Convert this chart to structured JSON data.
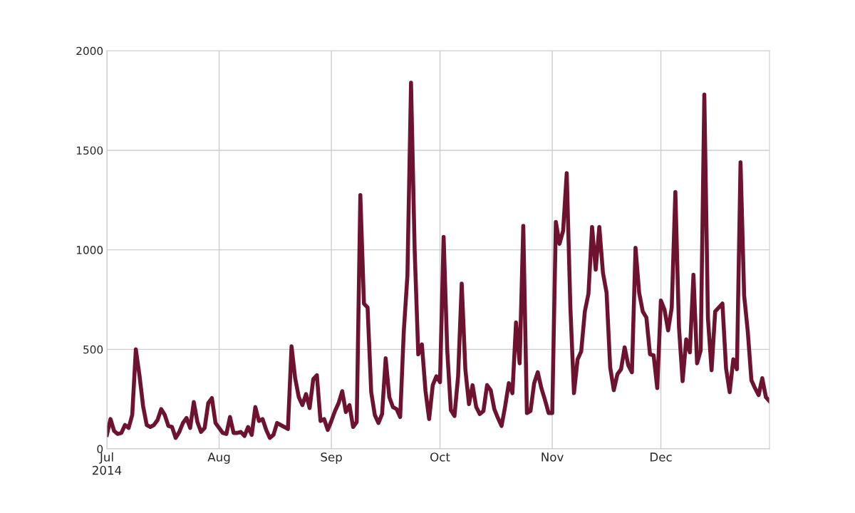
{
  "chart_data": {
    "type": "line",
    "xlim": [
      "2014-07-01",
      "2014-12-31"
    ],
    "ylim": [
      0,
      2000
    ],
    "xticks": [
      {
        "value": "2014-07-01",
        "label": "Jul\n2014"
      },
      {
        "value": "2014-08-01",
        "label": "Aug"
      },
      {
        "value": "2014-09-01",
        "label": "Sep"
      },
      {
        "value": "2014-10-01",
        "label": "Oct"
      },
      {
        "value": "2014-11-01",
        "label": "Nov"
      },
      {
        "value": "2014-12-01",
        "label": "Dec"
      }
    ],
    "yticks": [
      0,
      500,
      1000,
      1500,
      2000
    ],
    "grid": true,
    "marker": "none",
    "line_style": "solid",
    "x": [
      "2014-07-01",
      "2014-07-02",
      "2014-07-03",
      "2014-07-04",
      "2014-07-05",
      "2014-07-06",
      "2014-07-07",
      "2014-07-08",
      "2014-07-09",
      "2014-07-10",
      "2014-07-11",
      "2014-07-12",
      "2014-07-13",
      "2014-07-14",
      "2014-07-15",
      "2014-07-16",
      "2014-07-17",
      "2014-07-18",
      "2014-07-19",
      "2014-07-20",
      "2014-07-21",
      "2014-07-22",
      "2014-07-23",
      "2014-07-24",
      "2014-07-25",
      "2014-07-26",
      "2014-07-27",
      "2014-07-28",
      "2014-07-29",
      "2014-07-30",
      "2014-07-31",
      "2014-08-01",
      "2014-08-02",
      "2014-08-03",
      "2014-08-04",
      "2014-08-05",
      "2014-08-06",
      "2014-08-07",
      "2014-08-08",
      "2014-08-09",
      "2014-08-10",
      "2014-08-11",
      "2014-08-12",
      "2014-08-13",
      "2014-08-14",
      "2014-08-15",
      "2014-08-16",
      "2014-08-17",
      "2014-08-18",
      "2014-08-19",
      "2014-08-20",
      "2014-08-21",
      "2014-08-22",
      "2014-08-23",
      "2014-08-24",
      "2014-08-25",
      "2014-08-26",
      "2014-08-27",
      "2014-08-28",
      "2014-08-29",
      "2014-08-30",
      "2014-08-31",
      "2014-09-01",
      "2014-09-02",
      "2014-09-03",
      "2014-09-04",
      "2014-09-05",
      "2014-09-06",
      "2014-09-07",
      "2014-09-08",
      "2014-09-09",
      "2014-09-10",
      "2014-09-11",
      "2014-09-12",
      "2014-09-13",
      "2014-09-14",
      "2014-09-15",
      "2014-09-16",
      "2014-09-17",
      "2014-09-18",
      "2014-09-19",
      "2014-09-20",
      "2014-09-21",
      "2014-09-22",
      "2014-09-23",
      "2014-09-24",
      "2014-09-25",
      "2014-09-26",
      "2014-09-27",
      "2014-09-28",
      "2014-09-29",
      "2014-09-30",
      "2014-10-01",
      "2014-10-02",
      "2014-10-03",
      "2014-10-04",
      "2014-10-05",
      "2014-10-06",
      "2014-10-07",
      "2014-10-08",
      "2014-10-09",
      "2014-10-10",
      "2014-10-11",
      "2014-10-12",
      "2014-10-13",
      "2014-10-14",
      "2014-10-15",
      "2014-10-16",
      "2014-10-17",
      "2014-10-18",
      "2014-10-19",
      "2014-10-20",
      "2014-10-21",
      "2014-10-22",
      "2014-10-23",
      "2014-10-24",
      "2014-10-25",
      "2014-10-26",
      "2014-10-27",
      "2014-10-28",
      "2014-10-29",
      "2014-10-30",
      "2014-10-31",
      "2014-11-01",
      "2014-11-02",
      "2014-11-03",
      "2014-11-04",
      "2014-11-05",
      "2014-11-06",
      "2014-11-07",
      "2014-11-08",
      "2014-11-09",
      "2014-11-10",
      "2014-11-11",
      "2014-11-12",
      "2014-11-13",
      "2014-11-14",
      "2014-11-15",
      "2014-11-16",
      "2014-11-17",
      "2014-11-18",
      "2014-11-19",
      "2014-11-20",
      "2014-11-21",
      "2014-11-22",
      "2014-11-23",
      "2014-11-24",
      "2014-11-25",
      "2014-11-26",
      "2014-11-27",
      "2014-11-28",
      "2014-11-29",
      "2014-11-30",
      "2014-12-01",
      "2014-12-02",
      "2014-12-03",
      "2014-12-04",
      "2014-12-05",
      "2014-12-06",
      "2014-12-07",
      "2014-12-08",
      "2014-12-09",
      "2014-12-10",
      "2014-12-11",
      "2014-12-12",
      "2014-12-13",
      "2014-12-14",
      "2014-12-15",
      "2014-12-16",
      "2014-12-17",
      "2014-12-18",
      "2014-12-19",
      "2014-12-20",
      "2014-12-21",
      "2014-12-22",
      "2014-12-23",
      "2014-12-24",
      "2014-12-25",
      "2014-12-26",
      "2014-12-27",
      "2014-12-28",
      "2014-12-29",
      "2014-12-30",
      "2014-12-31"
    ],
    "series": [
      {
        "color": "#6d1330",
        "values": [
          70,
          150,
          90,
          75,
          80,
          120,
          105,
          170,
          500,
          370,
          215,
          120,
          110,
          120,
          145,
          200,
          170,
          115,
          110,
          55,
          85,
          130,
          155,
          105,
          235,
          135,
          85,
          105,
          230,
          255,
          130,
          105,
          80,
          75,
          160,
          80,
          80,
          85,
          65,
          110,
          70,
          210,
          140,
          150,
          95,
          55,
          70,
          130,
          120,
          110,
          100,
          515,
          355,
          260,
          220,
          275,
          205,
          350,
          370,
          140,
          150,
          95,
          140,
          190,
          230,
          290,
          185,
          220,
          110,
          135,
          1275,
          730,
          710,
          285,
          170,
          130,
          175,
          455,
          260,
          210,
          200,
          160,
          590,
          870,
          1840,
          1000,
          475,
          525,
          290,
          150,
          320,
          365,
          335,
          1065,
          495,
          195,
          165,
          365,
          830,
          400,
          225,
          320,
          210,
          175,
          190,
          320,
          295,
          200,
          155,
          115,
          215,
          330,
          280,
          635,
          430,
          1120,
          180,
          190,
          330,
          385,
          305,
          245,
          180,
          180,
          1140,
          1030,
          1095,
          1385,
          715,
          280,
          450,
          490,
          690,
          780,
          1115,
          900,
          1115,
          885,
          785,
          410,
          295,
          375,
          400,
          510,
          420,
          385,
          1010,
          785,
          690,
          660,
          475,
          470,
          305,
          745,
          700,
          595,
          710,
          1290,
          610,
          340,
          550,
          485,
          875,
          430,
          495,
          1780,
          655,
          395,
          690,
          710,
          730,
          405,
          285,
          450,
          400,
          1440,
          770,
          590,
          345,
          305,
          270,
          355,
          260,
          240
        ]
      }
    ]
  }
}
